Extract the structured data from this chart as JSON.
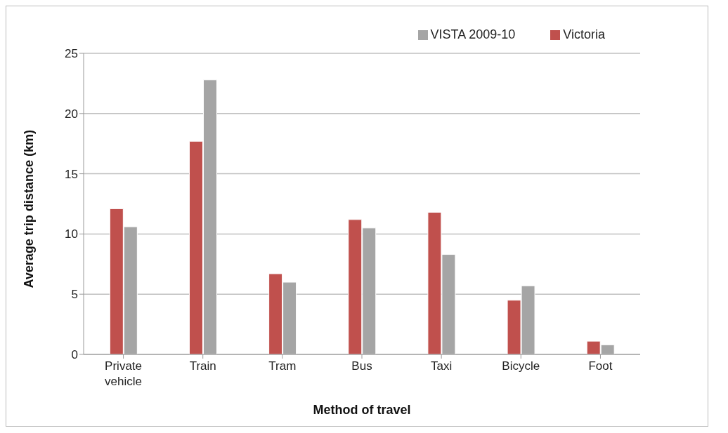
{
  "chart_data": {
    "type": "bar",
    "xlabel": "Method of travel",
    "ylabel": "Average trip distance (km)",
    "categories": [
      "Private vehicle",
      "Train",
      "Tram",
      "Bus",
      "Taxi",
      "Bicycle",
      "Foot"
    ],
    "series": [
      {
        "name": "Victoria",
        "color": "#c0504d",
        "values": [
          12.1,
          17.7,
          6.7,
          11.2,
          11.8,
          4.5,
          1.1
        ]
      },
      {
        "name": "VISTA 2009-10",
        "color": "#a5a5a5",
        "values": [
          10.6,
          22.8,
          6.0,
          10.5,
          8.3,
          5.7,
          0.8
        ]
      }
    ],
    "ylim": [
      0,
      25
    ],
    "yticks": [
      0,
      5,
      10,
      15,
      20,
      25
    ],
    "grid": "y",
    "legend": "top right"
  }
}
